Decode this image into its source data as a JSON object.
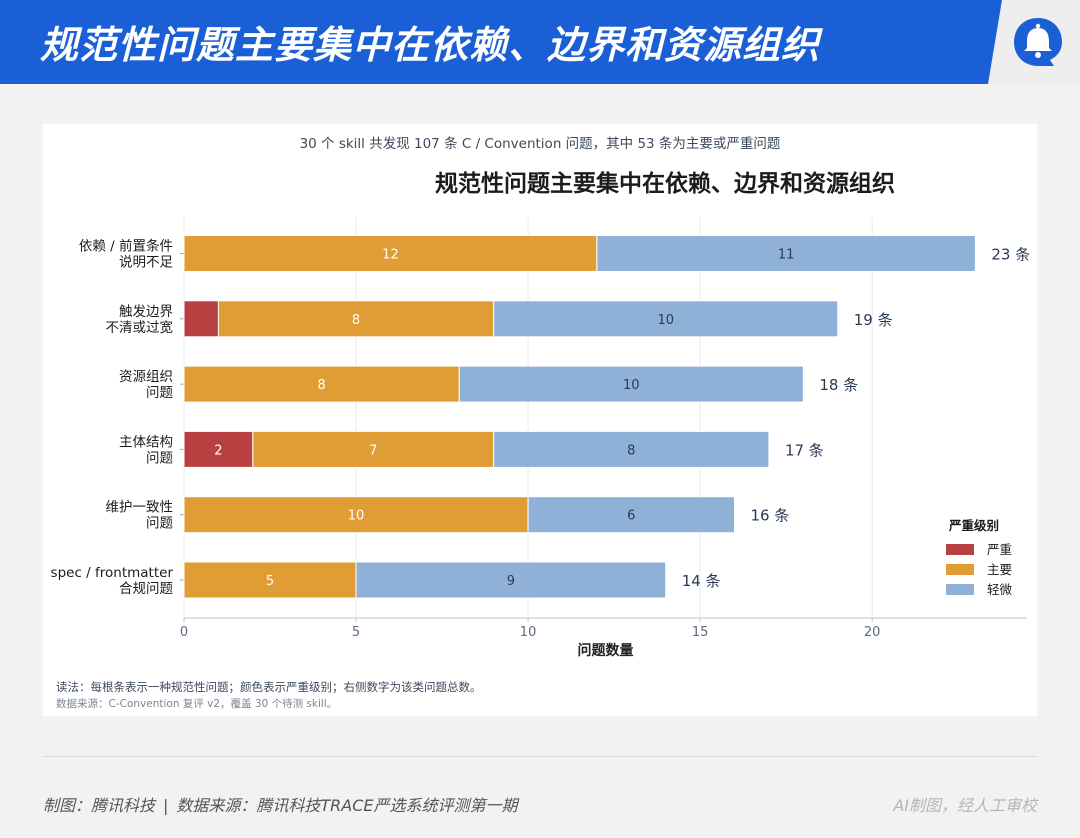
{
  "header": {
    "title": "规范性问题主要集中在依赖、边界和资源组织"
  },
  "brand": {
    "accent": "#1a5fd6",
    "logo_icon": "bell-bubble-icon"
  },
  "chart_subtitle": "30 个 skill 共发现 107 条 C / Convention 问题，其中 53 条为主要或严重问题",
  "chart_data": {
    "type": "bar",
    "orientation": "horizontal",
    "stacked": true,
    "title": "规范性问题主要集中在依赖、边界和资源组织",
    "xlabel": "问题数量",
    "ylabel": "",
    "xlim": [
      0,
      24.5
    ],
    "xticks": [
      0,
      5,
      10,
      15,
      20
    ],
    "grid": "vertical",
    "categories": [
      [
        "依赖 / 前置条件",
        "说明不足"
      ],
      [
        "触发边界",
        "不清或过宽"
      ],
      [
        "资源组织",
        "问题"
      ],
      [
        "主体结构",
        "问题"
      ],
      [
        "维护一致性",
        "问题"
      ],
      [
        "spec / frontmatter",
        "合规问题"
      ]
    ],
    "series": [
      {
        "name": "严重",
        "color": "#b84040",
        "values": [
          0,
          1,
          0,
          2,
          0,
          0
        ]
      },
      {
        "name": "主要",
        "color": "#e09d36",
        "values": [
          12,
          8,
          8,
          7,
          10,
          5
        ]
      },
      {
        "name": "轻微",
        "color": "#8fb1d8",
        "values": [
          11,
          10,
          10,
          8,
          6,
          9
        ]
      }
    ],
    "totals": [
      23,
      19,
      18,
      17,
      16,
      14
    ],
    "total_suffix": " 条",
    "legend": {
      "title": "严重级别",
      "placement": "bottom-right"
    }
  },
  "notes": {
    "reading": "读法：每根条表示一种规范性问题；颜色表示严重级别；右侧数字为该类问题总数。",
    "source": "数据来源：C-Convention 复评 v2，覆盖 30 个待测 skill。"
  },
  "footer": {
    "credit": "制图：腾讯科技",
    "separator": "|",
    "source": "数据来源：腾讯科技TRACE严选系统评测第一期",
    "ai_note": "AI制图，经人工审校"
  }
}
